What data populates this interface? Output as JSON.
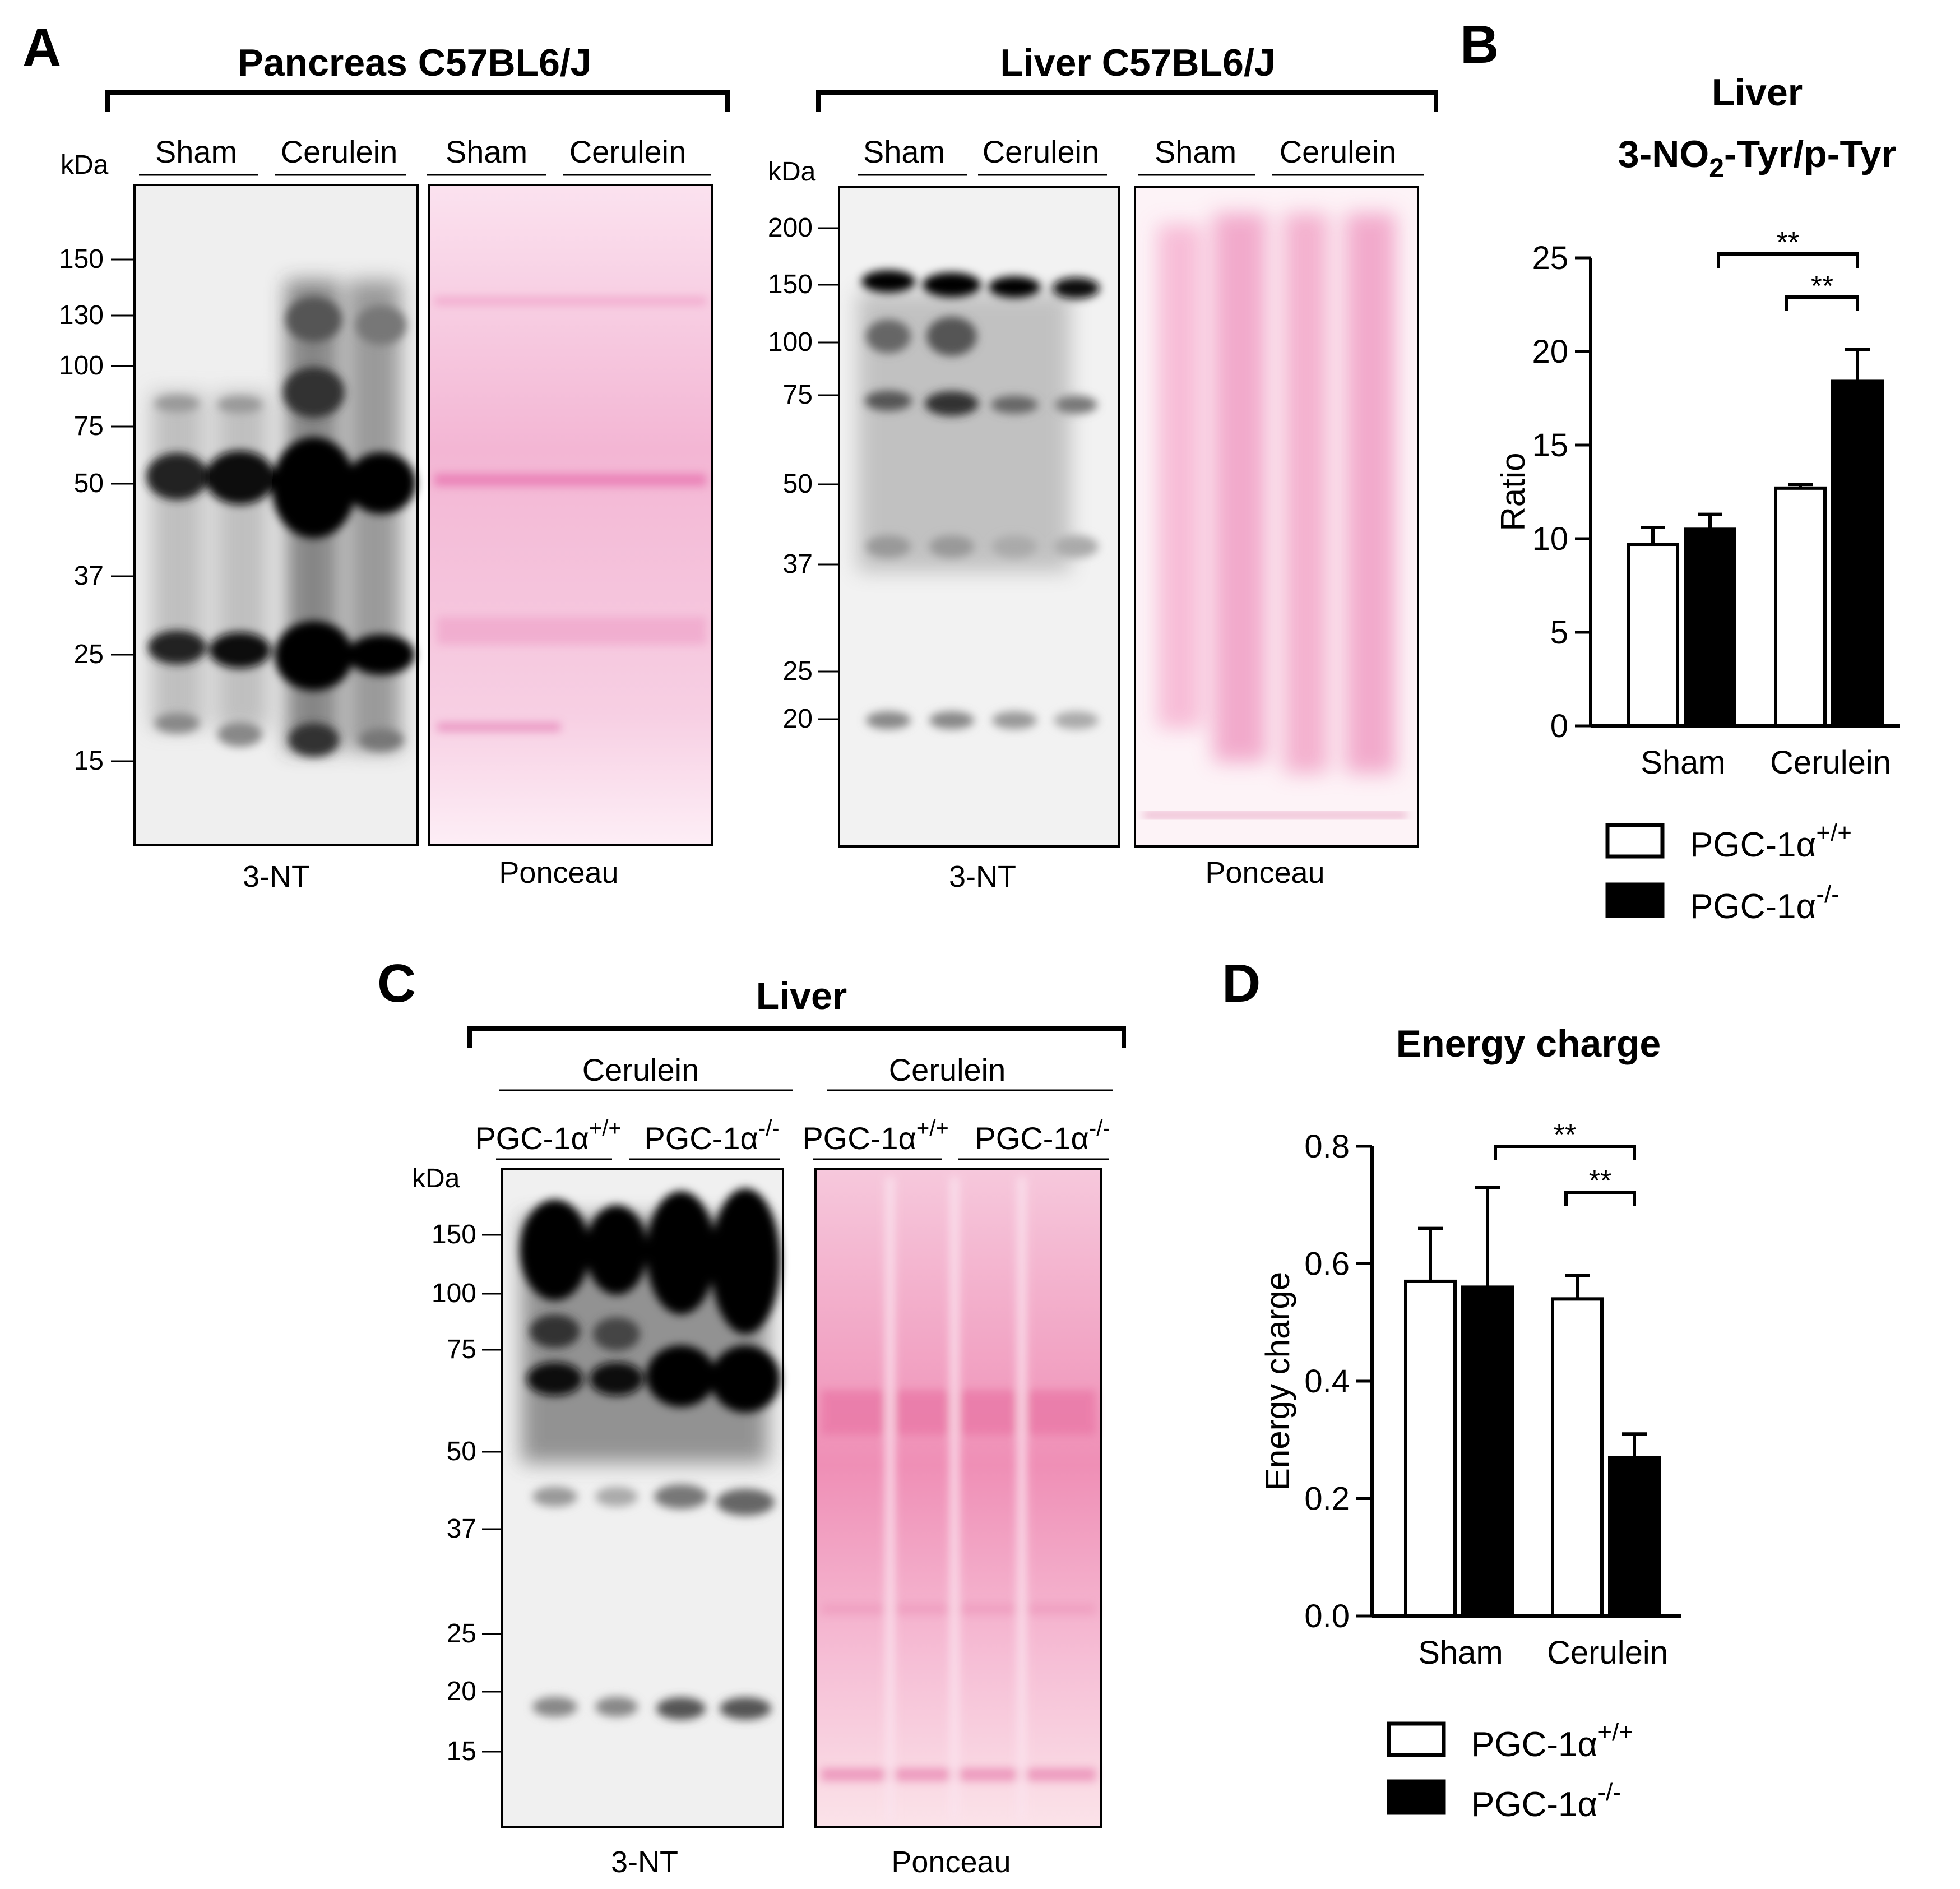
{
  "panels": {
    "A": {
      "letter": "A",
      "pancreas": {
        "title": "Pancreas C57BL6/J",
        "kda_label": "kDa",
        "lanes": [
          "Sham",
          "Cerulein",
          "Sham",
          "Cerulein"
        ],
        "markers": [
          "150",
          "130",
          "100",
          "75",
          "50",
          "37",
          "25",
          "15"
        ],
        "blot_caption": "3-NT",
        "stain_caption": "Ponceau"
      },
      "liver": {
        "title": "Liver C57BL6/J",
        "kda_label": "kDa",
        "lanes": [
          "Sham",
          "Cerulein",
          "Sham",
          "Cerulein"
        ],
        "markers": [
          "200",
          "150",
          "100",
          "75",
          "50",
          "37",
          "25",
          "20"
        ],
        "blot_caption": "3-NT",
        "stain_caption": "Ponceau"
      }
    },
    "B": {
      "letter": "B"
    },
    "C": {
      "letter": "C",
      "title": "Liver",
      "kda_label": "kDa",
      "group_labels": [
        "Cerulein",
        "Cerulein"
      ],
      "genotypes": [
        "PGC-1α",
        "PGC-1α",
        "PGC-1α",
        "PGC-1α"
      ],
      "genotype_sup": [
        "+/+",
        "-/-",
        "+/+",
        "-/-"
      ],
      "markers": [
        "150",
        "100",
        "75",
        "50",
        "37",
        "25",
        "20",
        "15"
      ],
      "blot_caption": "3-NT",
      "stain_caption": "Ponceau"
    },
    "D": {
      "letter": "D"
    }
  },
  "legend": {
    "wt_label": "PGC-1α",
    "wt_sup": "+/+",
    "ko_label": "PGC-1α",
    "ko_sup": "-/-"
  },
  "colors": {
    "wt_fill": "#ffffff",
    "ko_fill": "#000000",
    "ponceau": "#f3b8d6"
  },
  "chart_data": [
    {
      "type": "bar",
      "title_line1": "Liver",
      "title_line2": "3-NO2-Tyr/p-Tyr",
      "title_parts": [
        "3-NO",
        "2",
        "-Tyr/p-Tyr"
      ],
      "ylabel": "Ratio",
      "categories": [
        "Sham",
        "Cerulein"
      ],
      "series": [
        {
          "name": "PGC-1α+/+",
          "values": [
            9.7,
            12.7
          ],
          "errors": [
            0.9,
            0.2
          ]
        },
        {
          "name": "PGC-1α-/-",
          "values": [
            10.5,
            18.4
          ],
          "errors": [
            0.8,
            1.7
          ]
        }
      ],
      "ylim": [
        0,
        25
      ],
      "yticks": [
        "0",
        "5",
        "10",
        "15",
        "20",
        "25"
      ],
      "significance": [
        "**",
        "**"
      ]
    },
    {
      "type": "bar",
      "title": "Energy charge",
      "ylabel": "Energy charge",
      "categories": [
        "Sham",
        "Cerulein"
      ],
      "series": [
        {
          "name": "PGC-1α+/+",
          "values": [
            0.57,
            0.54
          ],
          "errors": [
            0.09,
            0.04
          ]
        },
        {
          "name": "PGC-1α-/-",
          "values": [
            0.56,
            0.27
          ],
          "errors": [
            0.17,
            0.04
          ]
        }
      ],
      "ylim": [
        0,
        0.8
      ],
      "yticks": [
        "0.0",
        "0.2",
        "0.4",
        "0.6",
        "0.8"
      ],
      "significance": [
        "**",
        "**"
      ]
    }
  ]
}
